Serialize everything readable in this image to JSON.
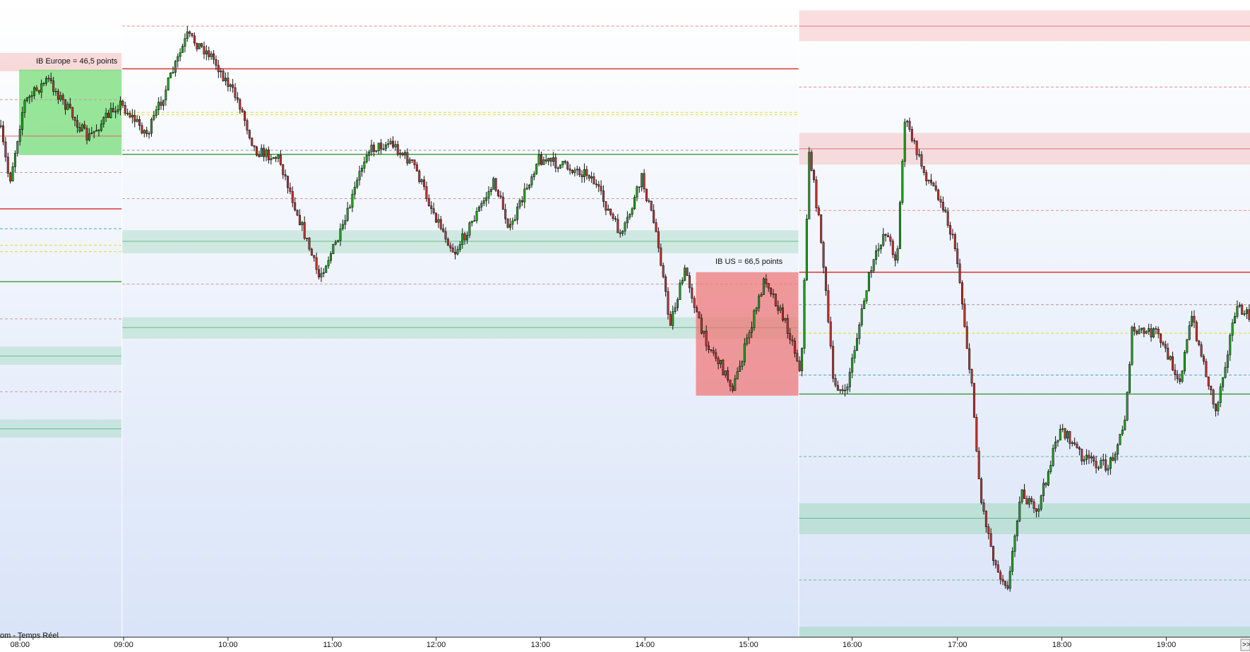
{
  "annotations": [
    "IB Europe = 46,5  points",
    "IB US = 66,5  points"
  ],
  "status": "om - Temps Réel",
  "time_axis": [
    "08:00",
    "09:00",
    "10:00",
    "11:00",
    "12:00",
    "13:00",
    "14:00",
    "15:00",
    "16:00",
    "17:00",
    "18:00",
    "19:00"
  ],
  "scroll_button": ">>"
}
